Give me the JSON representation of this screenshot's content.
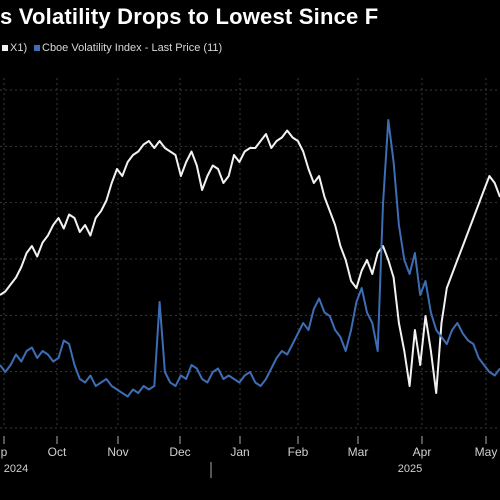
{
  "title": "s Volatility Drops to Lowest Since F",
  "legend": {
    "item1": "X1)",
    "item2": "Cboe Volatility Index - Last Price (11)"
  },
  "colors": {
    "background": "#000000",
    "series1": "#f2f2f2",
    "series2": "#3d6db5",
    "grid": "#3a3a3a"
  },
  "chart_data": {
    "type": "line",
    "title": "s Volatility Drops to Lowest Since F",
    "x_ticks": [
      "p",
      "Oct",
      "Nov",
      "Dec",
      "Jan",
      "Feb",
      "Mar",
      "Apr",
      "May"
    ],
    "year_labels": [
      "2024",
      "2025"
    ],
    "grid": true,
    "series": [
      {
        "name": "",
        "color": "#f2f2f2",
        "values": [
          0.38,
          0.39,
          0.41,
          0.43,
          0.46,
          0.5,
          0.52,
          0.49,
          0.53,
          0.55,
          0.58,
          0.6,
          0.57,
          0.61,
          0.6,
          0.56,
          0.58,
          0.55,
          0.6,
          0.62,
          0.65,
          0.7,
          0.74,
          0.72,
          0.76,
          0.78,
          0.79,
          0.81,
          0.82,
          0.8,
          0.82,
          0.8,
          0.79,
          0.78,
          0.72,
          0.76,
          0.79,
          0.75,
          0.68,
          0.72,
          0.75,
          0.74,
          0.7,
          0.72,
          0.78,
          0.76,
          0.79,
          0.8,
          0.8,
          0.82,
          0.84,
          0.8,
          0.82,
          0.83,
          0.85,
          0.83,
          0.82,
          0.79,
          0.74,
          0.7,
          0.72,
          0.66,
          0.62,
          0.58,
          0.52,
          0.48,
          0.42,
          0.4,
          0.45,
          0.48,
          0.44,
          0.5,
          0.52,
          0.48,
          0.43,
          0.3,
          0.22,
          0.12,
          0.28,
          0.18,
          0.32,
          0.22,
          0.1,
          0.3,
          0.4,
          0.44,
          0.48,
          0.52,
          0.56,
          0.6,
          0.64,
          0.68,
          0.72,
          0.7,
          0.66
        ]
      },
      {
        "name": "Cboe Volatility Index - Last Price",
        "color": "#3d6db5",
        "values": [
          0.18,
          0.16,
          0.18,
          0.21,
          0.19,
          0.22,
          0.23,
          0.2,
          0.22,
          0.21,
          0.19,
          0.2,
          0.25,
          0.24,
          0.18,
          0.14,
          0.13,
          0.15,
          0.12,
          0.13,
          0.14,
          0.12,
          0.11,
          0.1,
          0.09,
          0.11,
          0.1,
          0.12,
          0.11,
          0.12,
          0.36,
          0.16,
          0.13,
          0.12,
          0.15,
          0.14,
          0.18,
          0.17,
          0.14,
          0.13,
          0.16,
          0.17,
          0.14,
          0.15,
          0.14,
          0.13,
          0.15,
          0.16,
          0.13,
          0.12,
          0.14,
          0.17,
          0.2,
          0.22,
          0.21,
          0.24,
          0.27,
          0.3,
          0.28,
          0.34,
          0.37,
          0.33,
          0.32,
          0.28,
          0.26,
          0.22,
          0.28,
          0.36,
          0.4,
          0.33,
          0.3,
          0.22,
          0.64,
          0.88,
          0.76,
          0.58,
          0.48,
          0.44,
          0.5,
          0.38,
          0.42,
          0.33,
          0.28,
          0.26,
          0.24,
          0.28,
          0.3,
          0.27,
          0.25,
          0.24,
          0.2,
          0.18,
          0.16,
          0.15,
          0.17
        ]
      }
    ]
  }
}
